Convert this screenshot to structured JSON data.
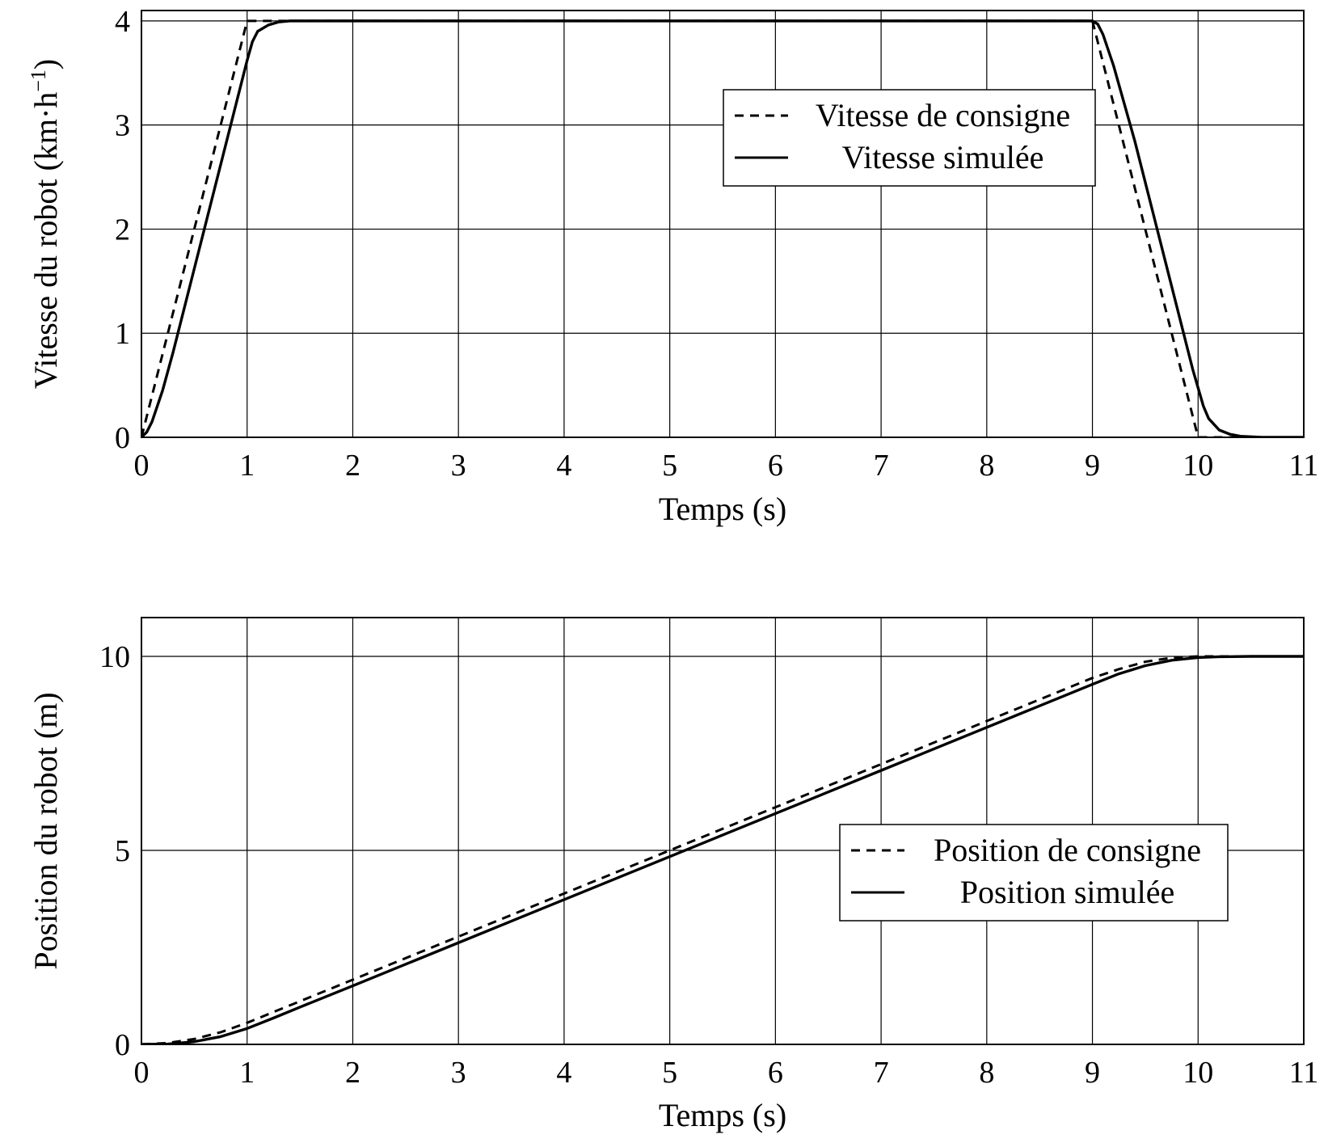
{
  "chart_data": [
    {
      "type": "line",
      "xlabel": "Temps (s)",
      "ylabel": "Vitesse du robot (km·h⁻¹)",
      "xlim": [
        0,
        11
      ],
      "ylim": [
        0,
        4.1
      ],
      "xticks": [
        "0",
        "1",
        "2",
        "3",
        "4",
        "5",
        "6",
        "7",
        "8",
        "9",
        "10",
        "11"
      ],
      "yticks": [
        "0",
        "1",
        "2",
        "3",
        "4"
      ],
      "grid": true,
      "legend_position": "top-right",
      "series": [
        {
          "name": "Vitesse de consigne",
          "style": "dashed",
          "x": [
            0,
            1,
            9,
            10,
            11
          ],
          "y": [
            0,
            4,
            4,
            0,
            0
          ]
        },
        {
          "name": "Vitesse simulée",
          "style": "solid",
          "x": [
            0,
            0.05,
            0.1,
            0.2,
            0.3,
            0.5,
            0.7,
            0.9,
            1.0,
            1.05,
            1.1,
            1.2,
            1.3,
            1.4,
            1.5,
            9.0,
            9.05,
            9.1,
            9.2,
            9.4,
            9.6,
            9.8,
            9.95,
            10.05,
            10.1,
            10.2,
            10.3,
            10.4,
            10.6,
            11
          ],
          "y": [
            0,
            0.05,
            0.15,
            0.45,
            0.82,
            1.62,
            2.42,
            3.22,
            3.62,
            3.8,
            3.9,
            3.96,
            3.99,
            4.0,
            4.0,
            4.0,
            3.97,
            3.87,
            3.57,
            2.85,
            2.05,
            1.25,
            0.65,
            0.3,
            0.18,
            0.07,
            0.03,
            0.01,
            0.0,
            0.0
          ]
        }
      ]
    },
    {
      "type": "line",
      "xlabel": "Temps (s)",
      "ylabel": "Position du robot (m)",
      "xlim": [
        0,
        11
      ],
      "ylim": [
        0,
        11
      ],
      "xticks": [
        "0",
        "1",
        "2",
        "3",
        "4",
        "5",
        "6",
        "7",
        "8",
        "9",
        "10",
        "11"
      ],
      "yticks": [
        "0",
        "5",
        "10"
      ],
      "grid": true,
      "legend_position": "center-right",
      "series": [
        {
          "name": "Position de consigne",
          "style": "dashed",
          "x": [
            0,
            0.25,
            0.5,
            0.75,
            1.0,
            2,
            3,
            4,
            5,
            6,
            7,
            8,
            9.0,
            9.25,
            9.5,
            9.75,
            10.0,
            11
          ],
          "y": [
            0,
            0.035,
            0.139,
            0.313,
            0.556,
            1.667,
            2.778,
            3.889,
            5.0,
            6.111,
            7.222,
            8.333,
            9.444,
            9.67,
            9.861,
            9.965,
            10.0,
            10.0
          ]
        },
        {
          "name": "Position simulée",
          "style": "solid",
          "x": [
            0,
            0.25,
            0.5,
            0.75,
            1.0,
            1.25,
            1.5,
            2,
            3,
            4,
            5,
            6,
            7,
            8,
            9.0,
            9.25,
            9.5,
            9.75,
            10.0,
            10.2,
            10.5,
            11
          ],
          "y": [
            0,
            0.01,
            0.07,
            0.2,
            0.41,
            0.68,
            0.96,
            1.51,
            2.62,
            3.73,
            4.84,
            5.95,
            7.06,
            8.17,
            9.28,
            9.55,
            9.76,
            9.9,
            9.97,
            9.99,
            10.0,
            10.0
          ]
        }
      ]
    }
  ]
}
